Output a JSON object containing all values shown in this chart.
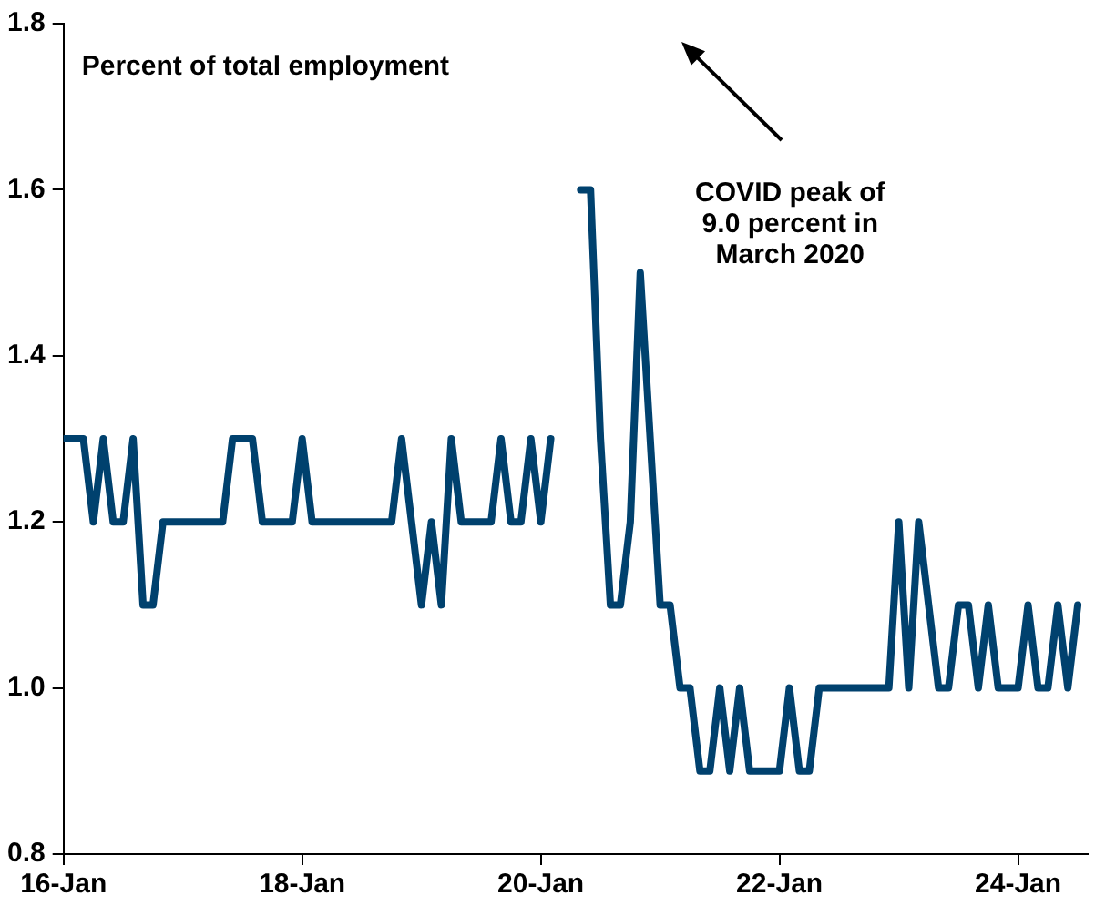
{
  "chart_data": {
    "type": "line",
    "x": [
      "2016-01",
      "2016-02",
      "2016-03",
      "2016-04",
      "2016-05",
      "2016-06",
      "2016-07",
      "2016-08",
      "2016-09",
      "2016-10",
      "2016-11",
      "2016-12",
      "2017-01",
      "2017-02",
      "2017-03",
      "2017-04",
      "2017-05",
      "2017-06",
      "2017-07",
      "2017-08",
      "2017-09",
      "2017-10",
      "2017-11",
      "2017-12",
      "2018-01",
      "2018-02",
      "2018-03",
      "2018-04",
      "2018-05",
      "2018-06",
      "2018-07",
      "2018-08",
      "2018-09",
      "2018-10",
      "2018-11",
      "2018-12",
      "2019-01",
      "2019-02",
      "2019-03",
      "2019-04",
      "2019-05",
      "2019-06",
      "2019-07",
      "2019-08",
      "2019-09",
      "2019-10",
      "2019-11",
      "2019-12",
      "2020-01",
      "2020-02",
      "2020-03",
      "2020-04",
      "2020-05",
      "2020-06",
      "2020-07",
      "2020-08",
      "2020-09",
      "2020-10",
      "2020-11",
      "2020-12",
      "2021-01",
      "2021-02",
      "2021-03",
      "2021-04",
      "2021-05",
      "2021-06",
      "2021-07",
      "2021-08",
      "2021-09",
      "2021-10",
      "2021-11",
      "2021-12",
      "2022-01",
      "2022-02",
      "2022-03",
      "2022-04",
      "2022-05",
      "2022-06",
      "2022-07",
      "2022-08",
      "2022-09",
      "2022-10",
      "2022-11",
      "2022-12",
      "2023-01",
      "2023-02",
      "2023-03",
      "2023-04",
      "2023-05",
      "2023-06",
      "2023-07",
      "2023-08",
      "2023-09",
      "2023-10",
      "2023-11",
      "2023-12",
      "2024-01",
      "2024-02",
      "2024-03",
      "2024-04",
      "2024-05",
      "2024-06",
      "2024-07"
    ],
    "series": [
      {
        "color": "#00416e",
        "values": [
          1.3,
          1.3,
          1.3,
          1.2,
          1.3,
          1.2,
          1.2,
          1.3,
          1.1,
          1.1,
          1.2,
          1.2,
          1.2,
          1.2,
          1.2,
          1.2,
          1.2,
          1.3,
          1.3,
          1.3,
          1.2,
          1.2,
          1.2,
          1.2,
          1.3,
          1.2,
          1.2,
          1.2,
          1.2,
          1.2,
          1.2,
          1.2,
          1.2,
          1.2,
          1.3,
          1.2,
          1.1,
          1.2,
          1.1,
          1.3,
          1.2,
          1.2,
          1.2,
          1.2,
          1.3,
          1.2,
          1.2,
          1.3,
          1.2,
          1.3,
          null,
          null,
          1.6,
          1.6,
          1.3,
          1.1,
          1.1,
          1.2,
          1.5,
          1.3,
          1.1,
          1.1,
          1.0,
          1.0,
          0.9,
          0.9,
          1.0,
          0.9,
          1.0,
          0.9,
          0.9,
          0.9,
          0.9,
          1.0,
          0.9,
          0.9,
          1.0,
          1.0,
          1.0,
          1.0,
          1.0,
          1.0,
          1.0,
          1.0,
          1.2,
          1.0,
          1.2,
          1.1,
          1.0,
          1.0,
          1.1,
          1.1,
          1.0,
          1.1,
          1.0,
          1.0,
          1.0,
          1.1,
          1.0,
          1.0,
          1.1,
          1.0,
          1.1
        ]
      }
    ],
    "xlim": [
      "2016-01",
      "2024-08"
    ],
    "xticks": [
      {
        "value": "2016-01",
        "label": "16-Jan"
      },
      {
        "value": "2018-01",
        "label": "18-Jan"
      },
      {
        "value": "2020-01",
        "label": "20-Jan"
      },
      {
        "value": "2022-01",
        "label": "22-Jan"
      },
      {
        "value": "2024-01",
        "label": "24-Jan"
      }
    ],
    "ylim": [
      0.8,
      1.8
    ],
    "yticks": [
      0.8,
      {
        "value": 1,
        "label": "1.0"
      },
      1.2,
      1.4,
      1.6,
      1.8
    ],
    "grid": false,
    "legend": false,
    "marker": "none",
    "line_style": "solid",
    "annotations": [
      "Percent of total employment",
      "COVID peak of 9.0 percent in March 2020"
    ]
  }
}
